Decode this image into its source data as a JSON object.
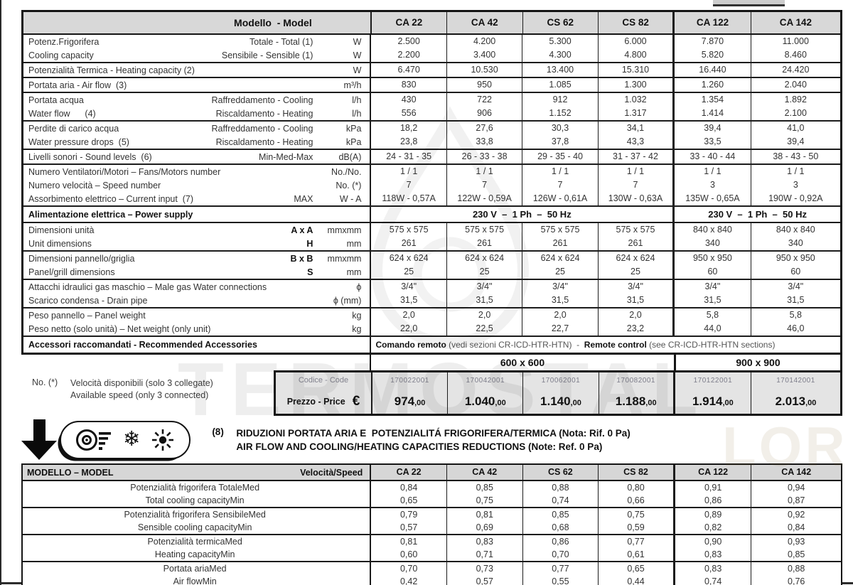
{
  "colors": {
    "border": "#1c1c1c",
    "header_bg": "#d8d8d8",
    "price_box_bg": "#e4e4e4"
  },
  "watermark": {
    "text1": "TERMOSTAL",
    "text2": "LOR"
  },
  "spec": {
    "header_label": "Modello  - Model",
    "models": [
      "CA 22",
      "CA 42",
      "CS 62",
      "CS 82",
      "CA 122",
      "CA 142"
    ],
    "blocks": [
      {
        "lines": [
          {
            "a": "Potenz.Frigorifera",
            "sub": "Totale - Total (1)",
            "unit": "W",
            "values": [
              "2.500",
              "4.200",
              "5.300",
              "6.000",
              "7.870",
              "11.000"
            ]
          },
          {
            "a": "Cooling capacity",
            "sub": "Sensibile - Sensible (1)",
            "unit": "W",
            "values": [
              "2.200",
              "3.400",
              "4.300",
              "4.800",
              "5.820",
              "8.460"
            ]
          }
        ]
      },
      {
        "lines": [
          {
            "a": "Potenzialità Termica - Heating capacity (2)",
            "sub": "",
            "unit": "W",
            "values": [
              "6.470",
              "10.530",
              "13.400",
              "15.310",
              "16.440",
              "24.420"
            ]
          }
        ]
      },
      {
        "lines": [
          {
            "a": "Portata aria - Air flow  (3)",
            "sub": "",
            "unit": "m³/h",
            "values": [
              "830",
              "950",
              "1.085",
              "1.300",
              "1.260",
              "2.040"
            ]
          }
        ]
      },
      {
        "lines": [
          {
            "a": "Portata acqua",
            "sub": "Raffreddamento - Cooling",
            "unit": "l/h",
            "values": [
              "430",
              "722",
              "912",
              "1.032",
              "1.354",
              "1.892"
            ]
          },
          {
            "a": "Water flow      (4)",
            "sub": "Riscaldamento - Heating",
            "unit": "l/h",
            "values": [
              "556",
              "906",
              "1.152",
              "1.317",
              "1.414",
              "2.100"
            ]
          }
        ]
      },
      {
        "lines": [
          {
            "a": "Perdite di carico acqua",
            "sub": "Raffreddamento - Cooling",
            "unit": "kPa",
            "values": [
              "18,2",
              "27,6",
              "30,3",
              "34,1",
              "39,4",
              "41,0"
            ]
          },
          {
            "a": "Water pressure drops  (5)",
            "sub": "Riscaldamento - Heating",
            "unit": "kPa",
            "values": [
              "23,8",
              "33,8",
              "37,8",
              "43,3",
              "33,5",
              "39,4"
            ]
          }
        ]
      },
      {
        "lines": [
          {
            "a": "Livelli sonori - Sound levels  (6)",
            "sub": "Min-Med-Max",
            "unit": "dB(A)",
            "values": [
              "24 - 31 - 35",
              "26 - 33 - 38",
              "29 - 35 - 40",
              "31 - 37 - 42",
              "33 - 40 - 44",
              "38 - 43 - 50"
            ]
          }
        ]
      },
      {
        "lines": [
          {
            "a": "Numero Ventilatori/Motori – Fans/Motors number",
            "sub": "",
            "unit": "No./No.",
            "values": [
              "1 / 1",
              "1 / 1",
              "1 / 1",
              "1 / 1",
              "1 / 1",
              "1 / 1"
            ]
          },
          {
            "a": "Numero velocità – Speed number",
            "sub": "",
            "unit": "No. (*)",
            "values": [
              "7",
              "7",
              "7",
              "7",
              "3",
              "3"
            ]
          },
          {
            "a": "Assorbimento elettrico – Current input  (7)",
            "sub": "MAX",
            "unit": "W - A",
            "values": [
              "118W - 0,57A",
              "122W - 0,59A",
              "126W - 0,61A",
              "130W - 0,63A",
              "135W - 0,65A",
              "190W - 0,92A"
            ]
          }
        ]
      },
      {
        "type": "span",
        "label": "Alimentazione elettrica – Power supply",
        "spans": [
          "230 V  –  1 Ph  –  50 Hz",
          "230 V  –  1 Ph  –  50 Hz"
        ]
      },
      {
        "lines": [
          {
            "a": "Dimensioni unità",
            "sub": "A x A",
            "sub_bold": true,
            "unit": "mmxmm",
            "values": [
              "575 x 575",
              "575 x 575",
              "575 x 575",
              "575 x 575",
              "840 x 840",
              "840 x 840"
            ]
          },
          {
            "a": "Unit dimensions",
            "sub": "H",
            "sub_bold": true,
            "unit": "mm",
            "values": [
              "261",
              "261",
              "261",
              "261",
              "340",
              "340"
            ]
          }
        ]
      },
      {
        "lines": [
          {
            "a": "Dimensioni pannello/griglia",
            "sub": "B x B",
            "sub_bold": true,
            "unit": "mmxmm",
            "values": [
              "624 x 624",
              "624 x 624",
              "624 x 624",
              "624 x 624",
              "950 x 950",
              "950 x 950"
            ]
          },
          {
            "a": "Panel/grill dimensions",
            "sub": "S",
            "sub_bold": true,
            "unit": "mm",
            "values": [
              "25",
              "25",
              "25",
              "25",
              "60",
              "60"
            ]
          }
        ]
      },
      {
        "lines": [
          {
            "a": "Attacchi idraulici gas maschio – Male gas Water connections",
            "sub": "",
            "unit": "ϕ",
            "values": [
              "3/4\"",
              "3/4\"",
              "3/4\"",
              "3/4\"",
              "3/4\"",
              "3/4\""
            ]
          },
          {
            "a": "Scarico condensa - Drain pipe",
            "sub": "",
            "unit": "ϕ (mm)",
            "values": [
              "31,5",
              "31,5",
              "31,5",
              "31,5",
              "31,5",
              "31,5"
            ]
          }
        ]
      },
      {
        "lines": [
          {
            "a": "Peso pannello – Panel weight",
            "sub": "",
            "unit": "kg",
            "values": [
              "2,0",
              "2,0",
              "2,0",
              "2,0",
              "5,8",
              "5,8"
            ]
          },
          {
            "a": "Peso netto (solo unità) – Net weight (only unit)",
            "sub": "",
            "unit": "kg",
            "values": [
              "22,0",
              "22,5",
              "22,7",
              "23,2",
              "44,0",
              "46,0"
            ]
          }
        ]
      },
      {
        "type": "wide",
        "label": "Accessori raccomandati - Recommended Accessories",
        "parts": [
          {
            "t": "Comando remoto ",
            "b": true
          },
          {
            "t": "(vedi sezioni CR-ICD-HTR-HTN)"
          },
          {
            "t": "  -  "
          },
          {
            "t": "Remote control ",
            "b": true
          },
          {
            "t": "(see CR-ICD-HTR-HTN sections)"
          }
        ]
      }
    ]
  },
  "sizes": [
    "600 x 600",
    "900 x 900"
  ],
  "price": {
    "code_label": "Codice - Code",
    "price_label": "Prezzo - Price",
    "currency": "€",
    "codes": [
      "170022001",
      "170042001",
      "170062001",
      "170082001",
      "170122001",
      "170142001"
    ],
    "prices": [
      "974,00",
      "1.040,00",
      "1.140,00",
      "1.188,00",
      "1.914,00",
      "2.013,00"
    ]
  },
  "note": {
    "prefix": "No. (*)",
    "line1": "Velocità disponibili (solo 3 collegate)",
    "line2": "Available speed (only 3 connected)"
  },
  "banner": {
    "number": "(8)",
    "line1": "RIDUZIONI PORTATA ARIA E  POTENZIALITÁ FRIGORIFERA/TERMICA (Nota: Rif. 0 Pa)",
    "line2": "AIR FLOW AND COOLING/HEATING CAPACITIES REDUCTIONS (Note: Ref. 0 Pa)",
    "icons": [
      "fan-icon",
      "snowflake-icon",
      "sun-icon"
    ],
    "snowflake_glyph": "❄"
  },
  "reduction": {
    "model_label": "MODELLO – MODEL",
    "speed_label": "Velocità/Speed",
    "med_label": "Med",
    "min_label": "Min",
    "groups": [
      {
        "it": "Potenzialità frigorifera Totale",
        "en": "Total cooling capacity",
        "med": [
          "0,84",
          "0,85",
          "0,88",
          "0,80",
          "0,91",
          "0,94"
        ],
        "min": [
          "0,65",
          "0,75",
          "0,74",
          "0,66",
          "0,86",
          "0,87"
        ]
      },
      {
        "it": "Potenzialità frigorifera Sensibile",
        "en": "Sensible cooling capacity",
        "med": [
          "0,79",
          "0,81",
          "0,85",
          "0,75",
          "0,89",
          "0,92"
        ],
        "min": [
          "0,57",
          "0,69",
          "0,68",
          "0,59",
          "0,82",
          "0,84"
        ]
      },
      {
        "it": "Potenzialità  termica",
        "en": "Heating capacity",
        "med": [
          "0,81",
          "0,83",
          "0,86",
          "0,77",
          "0,90",
          "0,93"
        ],
        "min": [
          "0,60",
          "0,71",
          "0,70",
          "0,61",
          "0,83",
          "0,85"
        ]
      },
      {
        "it": "Portata aria",
        "en": "Air flow",
        "med": [
          "0,70",
          "0,73",
          "0,77",
          "0,65",
          "0,83",
          "0,88"
        ],
        "min": [
          "0,42",
          "0,57",
          "0,55",
          "0,44",
          "0,74",
          "0,76"
        ]
      }
    ]
  }
}
